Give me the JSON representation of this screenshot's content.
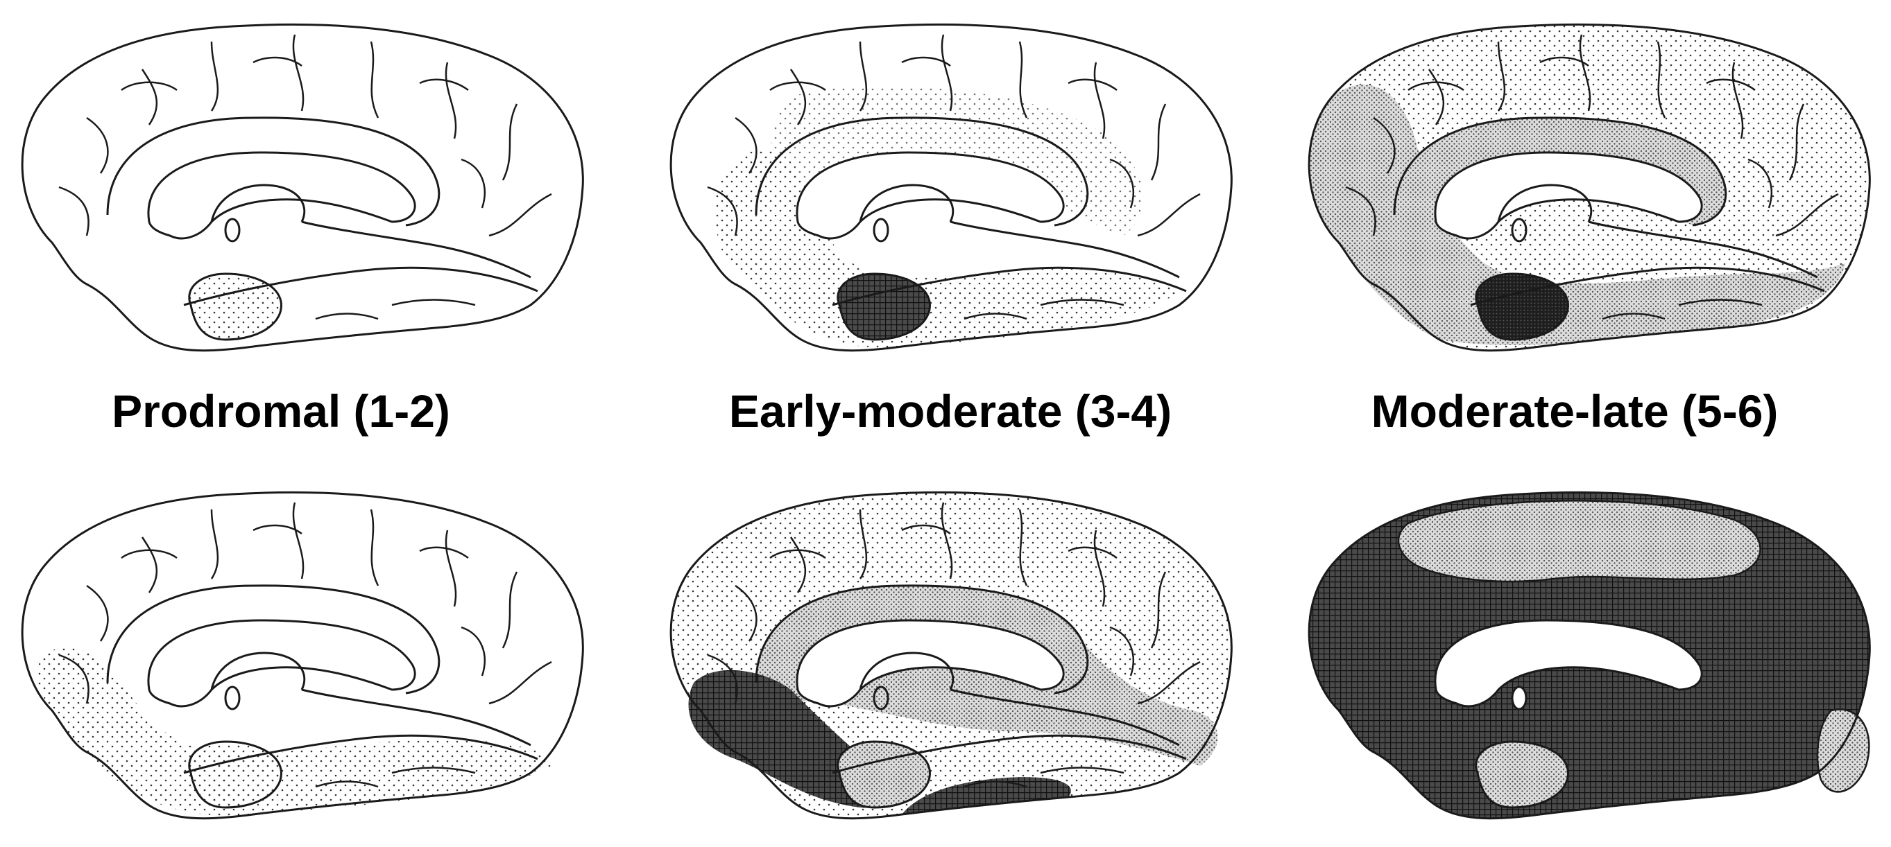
{
  "stages": [
    {
      "label": "Prodromal (1-2)"
    },
    {
      "label": "Early-moderate (3-4)"
    },
    {
      "label": "Moderate-late (5-6)"
    }
  ],
  "colors": {
    "outline": "#1a1a1a",
    "light": "#c8c8c8",
    "medium": "#8a8a8a",
    "dark": "#3a3a3a",
    "darkest": "#1c1c1c",
    "background": "#ffffff"
  }
}
